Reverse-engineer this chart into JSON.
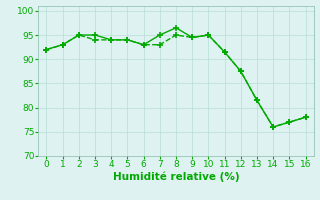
{
  "xlabel": "Humidité relative (%)",
  "xlim": [
    -0.5,
    16.5
  ],
  "ylim": [
    70,
    101
  ],
  "xticks": [
    0,
    1,
    2,
    3,
    4,
    5,
    6,
    7,
    8,
    9,
    10,
    11,
    12,
    13,
    14,
    15,
    16
  ],
  "yticks": [
    70,
    75,
    80,
    85,
    90,
    95,
    100
  ],
  "line1_x": [
    0,
    1,
    2,
    3,
    4,
    5,
    6,
    7,
    8,
    9,
    10,
    11,
    12,
    13,
    14,
    15,
    16
  ],
  "line1_y": [
    92,
    93,
    95,
    95,
    94,
    94,
    93,
    95,
    96.5,
    94.5,
    95,
    91.5,
    87.5,
    81.5,
    76,
    77,
    78
  ],
  "line2_x": [
    0,
    1,
    2,
    3,
    4,
    5,
    6,
    7,
    8,
    9,
    10,
    11,
    12,
    13,
    14,
    15,
    16
  ],
  "line2_y": [
    92,
    93,
    95,
    94,
    94,
    94,
    93,
    93,
    95,
    94.5,
    95,
    91.5,
    87.5,
    81.5,
    76,
    77,
    78
  ],
  "line_color": "#00aa00",
  "marker": "+",
  "marker_size": 4,
  "marker_edge_width": 1.2,
  "background_color": "#dff2f2",
  "grid_color": "#b8ddd8",
  "tick_label_color": "#00aa00",
  "axis_label_color": "#00aa00",
  "line_width": 1.0,
  "tick_fontsize": 6.5,
  "xlabel_fontsize": 7.5
}
